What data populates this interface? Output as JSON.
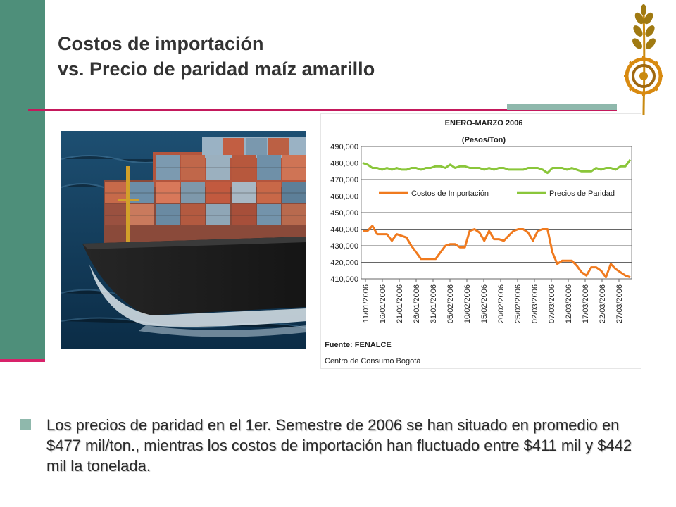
{
  "title": {
    "line1": "Costos de importación",
    "line2": "vs. Precio de paridad maíz amarillo"
  },
  "bullet": {
    "text": "Los precios de paridad en el 1er. Semestre de 2006 se han situado en promedio en $477 mil/ton., mientras los costos de importación han fluctuado entre $411 mil y $442 mil la tonelada."
  },
  "chart_data": {
    "type": "line",
    "title": "ENERO-MARZO 2006",
    "subtitle": "(Pesos/Ton)",
    "ylim": [
      410000,
      490000
    ],
    "yticks": [
      "490,000",
      "480,000",
      "470,000",
      "460,000",
      "450,000",
      "440,000",
      "430,000",
      "420,000",
      "410,000"
    ],
    "xticks": [
      "11/01/2006",
      "16/01/2006",
      "21/01/2006",
      "26/01/2006",
      "31/01/2006",
      "05/02/2006",
      "10/02/2006",
      "15/02/2006",
      "20/02/2006",
      "25/02/2006",
      "02/03/2006",
      "07/03/2006",
      "12/03/2006",
      "17/03/2006",
      "22/03/2006",
      "27/03/2006"
    ],
    "grid": true,
    "legend_position": "middle",
    "source": "Fuente: FENALCE",
    "note": "Centro de Consumo Bogotá",
    "series": [
      {
        "name": "Costos de Importación",
        "color": "#f07a1e",
        "values": [
          439000,
          439000,
          442000,
          437000,
          437000,
          437000,
          433000,
          437000,
          436000,
          435000,
          430000,
          426000,
          422000,
          422000,
          422000,
          422000,
          426000,
          430000,
          431000,
          431000,
          429000,
          429000,
          439000,
          440000,
          438000,
          433000,
          439000,
          434000,
          434000,
          433000,
          436000,
          439000,
          440000,
          440000,
          438000,
          433000,
          439000,
          440000,
          440000,
          426000,
          419000,
          421000,
          421000,
          421000,
          418000,
          414000,
          412000,
          417000,
          417000,
          415000,
          411000,
          419000,
          416000,
          414000,
          412000,
          411000
        ]
      },
      {
        "name": "Precios de Paridad",
        "color": "#8ac63a",
        "values": [
          480000,
          479000,
          477000,
          477000,
          476000,
          477000,
          476000,
          477000,
          476000,
          476000,
          477000,
          477000,
          476000,
          477000,
          477000,
          478000,
          478000,
          477000,
          479000,
          477000,
          478000,
          478000,
          477000,
          477000,
          477000,
          476000,
          477000,
          476000,
          477000,
          477000,
          476000,
          476000,
          476000,
          476000,
          477000,
          477000,
          477000,
          476000,
          474000,
          477000,
          477000,
          477000,
          476000,
          477000,
          476000,
          475000,
          475000,
          475000,
          477000,
          476000,
          477000,
          477000,
          476000,
          478000,
          478000,
          482000
        ]
      }
    ]
  }
}
